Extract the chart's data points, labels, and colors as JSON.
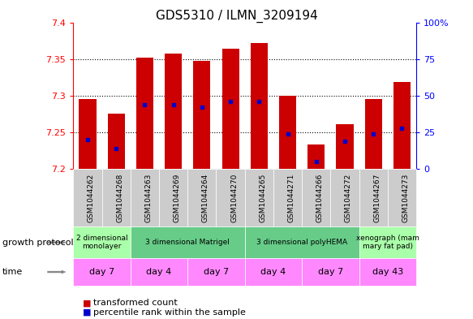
{
  "title": "GDS5310 / ILMN_3209194",
  "samples": [
    "GSM1044262",
    "GSM1044268",
    "GSM1044263",
    "GSM1044269",
    "GSM1044264",
    "GSM1044270",
    "GSM1044265",
    "GSM1044271",
    "GSM1044266",
    "GSM1044272",
    "GSM1044267",
    "GSM1044273"
  ],
  "transformed_counts": [
    7.296,
    7.276,
    7.352,
    7.357,
    7.348,
    7.364,
    7.372,
    7.3,
    7.233,
    7.261,
    7.295,
    7.319
  ],
  "percentile_ranks": [
    20,
    14,
    44,
    44,
    42,
    46,
    46,
    24,
    5,
    19,
    24,
    28
  ],
  "y_min": 7.2,
  "y_max": 7.4,
  "y_ticks": [
    7.2,
    7.25,
    7.3,
    7.35,
    7.4
  ],
  "y_tick_labels": [
    "7.2",
    "7.25",
    "7.3",
    "7.35",
    "7.4"
  ],
  "right_y_ticks": [
    0,
    25,
    50,
    75,
    100
  ],
  "right_y_labels": [
    "0",
    "25",
    "50",
    "75",
    "100%"
  ],
  "bar_color": "#cc0000",
  "blue_color": "#0000cc",
  "bar_width": 0.6,
  "growth_protocol_groups": [
    {
      "label": "2 dimensional\nmonolayer",
      "start": 0,
      "end": 2,
      "color": "#aaffaa"
    },
    {
      "label": "3 dimensional Matrigel",
      "start": 2,
      "end": 6,
      "color": "#66cc88"
    },
    {
      "label": "3 dimensional polyHEMA",
      "start": 6,
      "end": 10,
      "color": "#66cc88"
    },
    {
      "label": "xenograph (mam\nmary fat pad)",
      "start": 10,
      "end": 12,
      "color": "#aaffaa"
    }
  ],
  "time_groups": [
    {
      "label": "day 7",
      "start": 0,
      "end": 2,
      "color": "#ff88ff"
    },
    {
      "label": "day 4",
      "start": 2,
      "end": 4,
      "color": "#ff88ff"
    },
    {
      "label": "day 7",
      "start": 4,
      "end": 6,
      "color": "#ff88ff"
    },
    {
      "label": "day 4",
      "start": 6,
      "end": 8,
      "color": "#ff88ff"
    },
    {
      "label": "day 7",
      "start": 8,
      "end": 10,
      "color": "#ff88ff"
    },
    {
      "label": "day 43",
      "start": 10,
      "end": 12,
      "color": "#ff88ff"
    }
  ],
  "legend_red_label": "transformed count",
  "legend_blue_label": "percentile rank within the sample",
  "growth_protocol_label": "growth protocol",
  "time_label": "time",
  "sample_bg_color": "#cccccc"
}
